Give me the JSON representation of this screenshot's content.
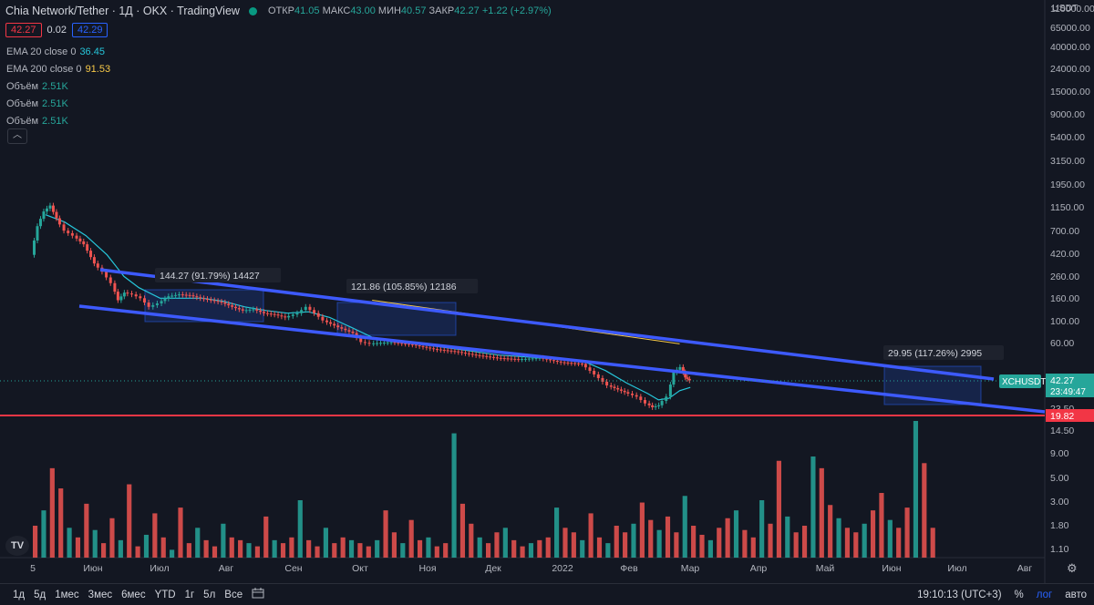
{
  "header": {
    "title": "Chia Network/Tether · 1Д · OKX · TradingView",
    "ohlc": [
      {
        "label": "ОТКР",
        "value": "41.05"
      },
      {
        "label": "МАКС",
        "value": "43.00"
      },
      {
        "label": "МИН",
        "value": "40.57"
      },
      {
        "label": "ЗАКР",
        "value": "42.27"
      },
      {
        "label": "",
        "value": "+1.22 (+2.97%)"
      }
    ],
    "bid": "42.27",
    "spread": "0.02",
    "ask": "42.29"
  },
  "indicators": [
    {
      "label": "EMA 20 close 0",
      "value": "36.45",
      "color": "#26c6da"
    },
    {
      "label": "EMA 200 close 0",
      "value": "91.53",
      "color": "#f7c948"
    },
    {
      "label": "Объём",
      "value": "2.51K",
      "color": "#26a69a"
    },
    {
      "label": "Объём",
      "value": "2.51K",
      "color": "#26a69a"
    },
    {
      "label": "Объём",
      "value": "2.51K",
      "color": "#26a69a"
    }
  ],
  "collapse_icon": "chevron-up-icon",
  "chart_data": {
    "type": "candlestick",
    "symbol": "XCHUSDT",
    "currency": "USDT",
    "scale": "log",
    "x_ticks": [
      "5",
      "Июн",
      "Июл",
      "Авг",
      "Сен",
      "Окт",
      "Ноя",
      "Дек",
      "2022",
      "Фев",
      "Мар",
      "Апр",
      "Май",
      "Июн",
      "Июл",
      "Авг"
    ],
    "y_ticks": [
      "110000.00",
      "65000.00",
      "40000.00",
      "24000.00",
      "15000.00",
      "9000.00",
      "5400.00",
      "3150.00",
      "1950.00",
      "1150.00",
      "700.00",
      "420.00",
      "260.00",
      "160.00",
      "100.00",
      "60.00",
      "23.50",
      "14.50",
      "9.00",
      "5.00",
      "3.00",
      "1.80",
      "1.10"
    ],
    "y_tick_values": [
      110000,
      65000,
      40000,
      24000,
      15000,
      9000,
      5400,
      3150,
      1950,
      1150,
      700,
      420,
      260,
      160,
      100,
      60,
      23.5,
      14.5,
      9,
      5,
      3,
      1.8,
      1.1
    ],
    "last_price": "42.27",
    "countdown": "23:49:47",
    "horizontal_line": {
      "value": "19.82",
      "color": "#f23645"
    },
    "price_path": [
      [
        0,
        600
      ],
      [
        0.3,
        1100
      ],
      [
        0.6,
        1500
      ],
      [
        0.9,
        1700
      ],
      [
        1.2,
        1300
      ],
      [
        1.6,
        1000
      ],
      [
        2.0,
        900
      ],
      [
        2.5,
        750
      ],
      [
        3.0,
        500
      ],
      [
        3.4,
        420
      ],
      [
        3.8,
        330
      ],
      [
        4.1,
        230
      ],
      [
        4.4,
        270
      ],
      [
        4.8,
        260
      ],
      [
        5.2,
        240
      ],
      [
        5.6,
        200
      ],
      [
        6.0,
        215
      ],
      [
        6.5,
        250
      ],
      [
        7.0,
        260
      ],
      [
        7.5,
        255
      ],
      [
        8.0,
        240
      ],
      [
        8.5,
        230
      ],
      [
        9.0,
        220
      ],
      [
        9.5,
        200
      ],
      [
        10.0,
        185
      ],
      [
        10.5,
        190
      ],
      [
        11.0,
        175
      ],
      [
        11.5,
        170
      ],
      [
        12.0,
        160
      ],
      [
        12.6,
        175
      ],
      [
        13.0,
        200
      ],
      [
        13.4,
        175
      ],
      [
        13.8,
        150
      ],
      [
        14.5,
        130
      ],
      [
        15.2,
        115
      ],
      [
        15.6,
        95
      ],
      [
        16.0,
        92
      ],
      [
        17.0,
        95
      ],
      [
        18.0,
        90
      ],
      [
        19.0,
        82
      ],
      [
        20.0,
        78
      ],
      [
        21.0,
        72
      ],
      [
        22.0,
        68
      ],
      [
        23.0,
        66
      ],
      [
        24.0,
        68
      ],
      [
        25.0,
        62
      ],
      [
        26.0,
        60
      ],
      [
        26.6,
        48
      ],
      [
        27.2,
        38
      ],
      [
        28.0,
        33
      ],
      [
        28.6,
        30
      ],
      [
        29.0,
        26
      ],
      [
        29.3,
        24
      ],
      [
        29.6,
        25
      ],
      [
        30.0,
        30
      ],
      [
        30.3,
        50
      ],
      [
        30.6,
        56
      ],
      [
        30.8,
        45
      ],
      [
        31.0,
        42.27
      ]
    ],
    "ema20": [
      [
        0.6,
        1400
      ],
      [
        1.5,
        1200
      ],
      [
        2.5,
        900
      ],
      [
        3.5,
        600
      ],
      [
        4.3,
        380
      ],
      [
        5.0,
        300
      ],
      [
        6.0,
        240
      ],
      [
        7.0,
        240
      ],
      [
        8.0,
        240
      ],
      [
        9.0,
        225
      ],
      [
        10.0,
        200
      ],
      [
        11.0,
        185
      ],
      [
        12.0,
        175
      ],
      [
        13.0,
        180
      ],
      [
        14.0,
        160
      ],
      [
        15.0,
        130
      ],
      [
        16.0,
        105
      ],
      [
        18.0,
        92
      ],
      [
        20.0,
        82
      ],
      [
        22.0,
        72
      ],
      [
        24.0,
        68
      ],
      [
        26.0,
        63
      ],
      [
        27.0,
        52
      ],
      [
        28.0,
        40
      ],
      [
        29.0,
        32
      ],
      [
        29.5,
        28
      ],
      [
        30.0,
        29
      ],
      [
        30.5,
        34
      ],
      [
        31.0,
        36.45
      ]
    ],
    "ema200": [
      [
        16.0,
        230
      ],
      [
        30.5,
        91.53
      ]
    ],
    "volume": [
      2.1,
      3.0,
      8.0,
      5.0,
      2.0,
      1.6,
      3.5,
      1.9,
      1.4,
      2.5,
      1.5,
      5.5,
      1.3,
      1.7,
      2.8,
      1.6,
      1.2,
      3.2,
      1.4,
      2.0,
      1.5,
      1.3,
      2.2,
      1.6,
      1.5,
      1.4,
      1.3,
      2.6,
      1.5,
      1.4,
      1.6,
      3.8,
      1.5,
      1.3,
      2.0,
      1.4,
      1.6,
      1.5,
      1.4,
      1.3,
      1.5,
      3.0,
      1.8,
      1.4,
      2.4,
      1.5,
      1.6,
      1.3,
      1.4,
      18.0,
      3.5,
      2.2,
      1.6,
      1.4,
      1.8,
      2.0,
      1.5,
      1.3,
      1.4,
      1.5,
      1.6,
      3.2,
      2.0,
      1.8,
      1.5,
      2.8,
      1.6,
      1.4,
      2.1,
      1.8,
      2.2,
      3.6,
      2.4,
      1.9,
      2.6,
      1.8,
      4.2,
      2.1,
      1.7,
      1.5,
      2.0,
      2.5,
      3.0,
      1.9,
      1.6,
      3.8,
      2.2,
      9.5,
      2.6,
      1.8,
      2.1,
      10.5,
      8.0,
      3.4,
      2.5,
      2.0,
      1.8,
      2.2,
      3.0,
      4.5,
      2.4,
      2.0,
      3.2,
      24.0,
      9.0,
      2.0
    ]
  },
  "annotations": [
    {
      "label": "144.27 (91.79%) 14427"
    },
    {
      "label": "121.86 (105.85%) 12186"
    },
    {
      "label": "29.95 (117.26%) 2995"
    }
  ],
  "toolbar": {
    "timeframes": [
      "1д",
      "5д",
      "1мес",
      "3мес",
      "6мес",
      "YTD",
      "1г",
      "5л",
      "Все"
    ],
    "calendar_icon": "calendar-range-icon",
    "clock": "19:10:13 (UTC+3)",
    "percent": "%",
    "log": "лог",
    "auto": "авто"
  },
  "logo_text": "TV",
  "settings_icon": "gear-icon"
}
